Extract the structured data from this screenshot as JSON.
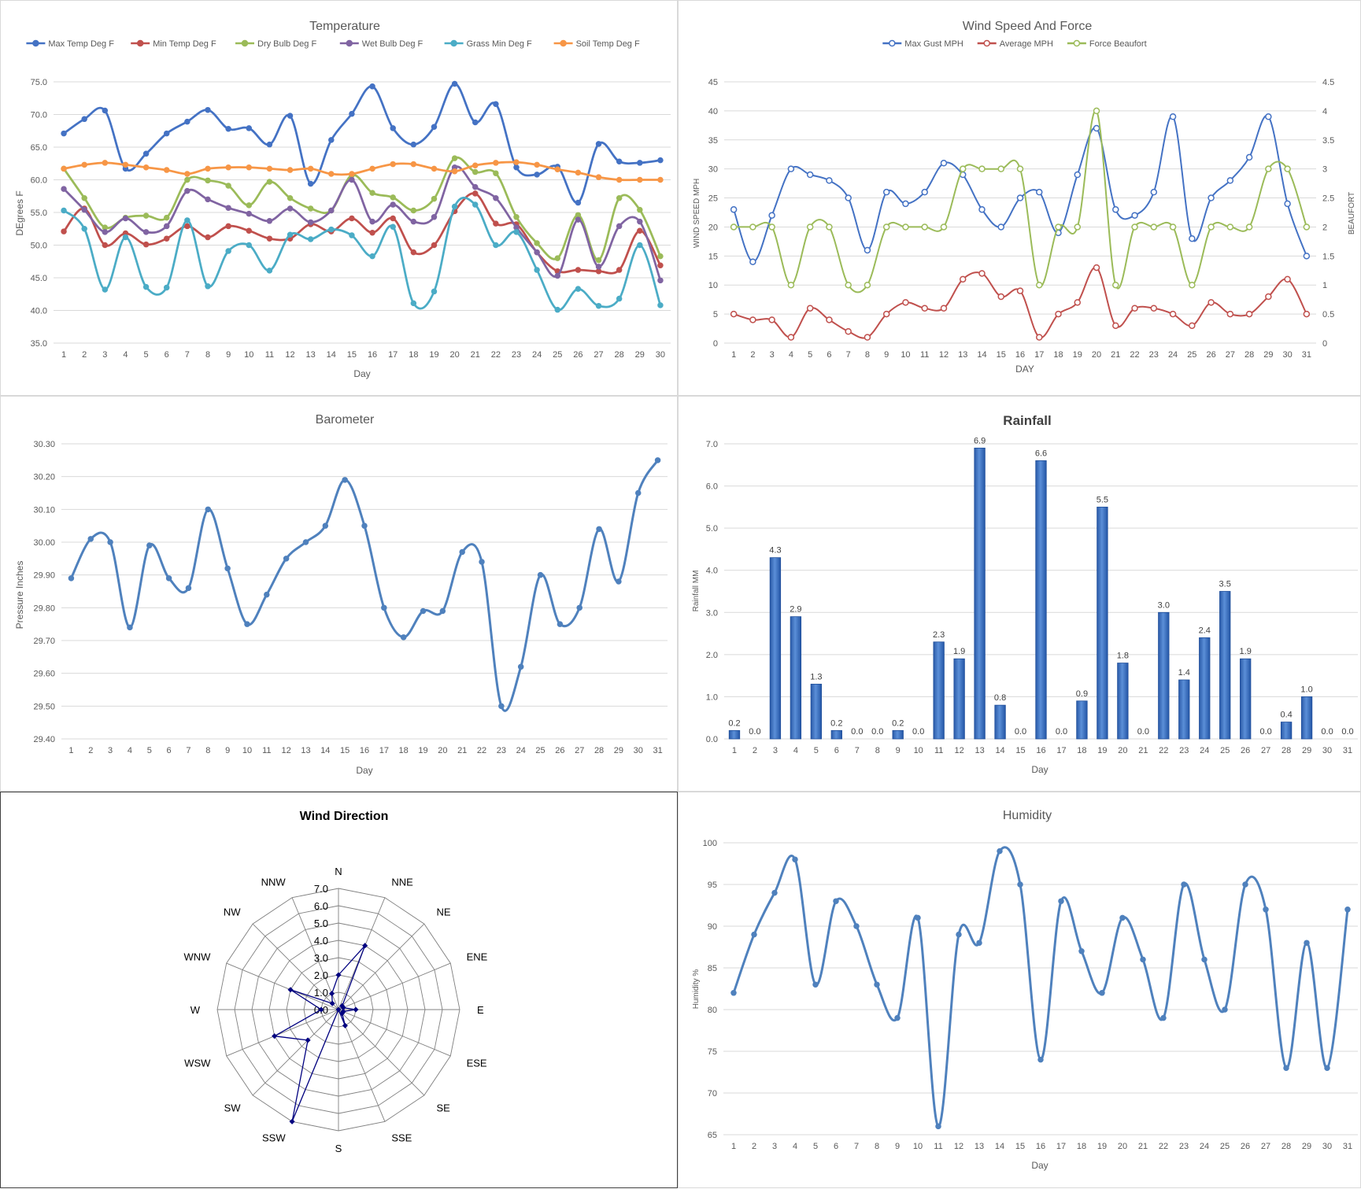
{
  "colors": {
    "max_temp": "#4472C4",
    "min_temp": "#C0504D",
    "dry_bulb": "#9BBB59",
    "wet_bulb": "#8064A2",
    "grass_min": "#4BACC6",
    "soil_temp": "#F79646",
    "barometer": "#4F81BD",
    "rain_bar": "#3E70C0",
    "radar": "#000080",
    "grid": "#d9d9d9",
    "axis_text": "#595959"
  },
  "chart_data": [
    {
      "id": "temperature",
      "type": "line",
      "title": "Temperature",
      "xlabel": "Day",
      "ylabel": "DEgrees F",
      "ylim": [
        35,
        75
      ],
      "yticks": [
        "35.0",
        "40.0",
        "45.0",
        "50.0",
        "55.0",
        "60.0",
        "65.0",
        "70.0",
        "75.0"
      ],
      "x": [
        1,
        2,
        3,
        4,
        5,
        6,
        7,
        8,
        9,
        10,
        11,
        12,
        13,
        14,
        15,
        16,
        17,
        18,
        19,
        20,
        21,
        22,
        23,
        24,
        25,
        26,
        27,
        28,
        29,
        30
      ],
      "grid": true,
      "legend": "top",
      "series": [
        {
          "name": "Max Temp Deg F",
          "color": "#4472C4",
          "values": [
            67.1,
            69.3,
            70.6,
            61.7,
            64.0,
            67.1,
            68.9,
            70.7,
            67.8,
            67.9,
            65.4,
            69.8,
            59.4,
            66.1,
            70.1,
            74.3,
            67.9,
            65.4,
            68.1,
            74.7,
            68.8,
            71.6,
            61.9,
            60.8,
            62.0,
            56.5,
            65.5,
            62.8,
            62.6,
            63.0
          ]
        },
        {
          "name": "Min Temp Deg F",
          "color": "#C0504D",
          "values": [
            52.1,
            55.6,
            50.0,
            51.8,
            50.1,
            51.0,
            52.9,
            51.2,
            52.9,
            52.2,
            51.0,
            51.0,
            53.2,
            52.1,
            54.1,
            51.9,
            54.1,
            48.9,
            50.0,
            55.2,
            57.9,
            53.3,
            53.2,
            48.9,
            46.0,
            46.2,
            46.0,
            46.2,
            52.2,
            46.9
          ]
        },
        {
          "name": "Dry Bulb Deg F",
          "color": "#9BBB59",
          "values": [
            61.7,
            57.2,
            52.7,
            54.2,
            54.5,
            54.2,
            60.0,
            59.9,
            59.1,
            56.1,
            59.7,
            57.2,
            55.6,
            55.3,
            60.7,
            58.0,
            57.3,
            55.3,
            57.1,
            63.3,
            61.2,
            61.0,
            54.3,
            50.3,
            48.0,
            54.6,
            47.7,
            57.2,
            55.4,
            48.3
          ]
        },
        {
          "name": "Wet Bulb Deg F",
          "color": "#8064A2",
          "values": [
            58.6,
            55.4,
            52.0,
            54.1,
            52.0,
            52.9,
            58.3,
            57.0,
            55.7,
            54.8,
            53.7,
            55.6,
            53.5,
            55.3,
            60.0,
            53.6,
            56.2,
            53.6,
            54.3,
            61.9,
            58.9,
            57.2,
            52.7,
            48.9,
            45.3,
            53.9,
            46.7,
            52.9,
            53.6,
            44.6
          ]
        },
        {
          "name": "Grass Min Deg F",
          "color": "#4BACC6",
          "values": [
            55.3,
            52.5,
            43.2,
            51.2,
            43.6,
            43.5,
            53.8,
            43.7,
            49.1,
            50.0,
            46.1,
            51.6,
            50.9,
            52.4,
            51.5,
            48.3,
            52.8,
            41.1,
            42.9,
            55.9,
            56.2,
            50.0,
            52.0,
            46.2,
            40.1,
            43.3,
            40.7,
            41.8,
            50.0,
            40.8
          ]
        },
        {
          "name": "Soil Temp Deg F",
          "color": "#F79646",
          "values": [
            61.7,
            62.3,
            62.6,
            62.3,
            61.9,
            61.5,
            60.9,
            61.7,
            61.9,
            61.9,
            61.7,
            61.5,
            61.7,
            60.9,
            60.9,
            61.7,
            62.4,
            62.4,
            61.7,
            61.3,
            62.2,
            62.6,
            62.7,
            62.3,
            61.6,
            61.1,
            60.4,
            60.0,
            60.0,
            60.0
          ]
        }
      ]
    },
    {
      "id": "wind",
      "type": "line",
      "title": "Wind Speed And Force",
      "xlabel": "DAY",
      "ylabel": "WIND SPEED MPH",
      "y2label": "BEAUFORT",
      "ylim": [
        0,
        45
      ],
      "y2lim": [
        0,
        4.5
      ],
      "yticks": [
        "0",
        "5",
        "10",
        "15",
        "20",
        "25",
        "30",
        "35",
        "40",
        "45"
      ],
      "y2ticks": [
        "0",
        "0.5",
        "1",
        "1.5",
        "2",
        "2.5",
        "3",
        "3.5",
        "4",
        "4.5"
      ],
      "x": [
        1,
        2,
        3,
        4,
        5,
        6,
        7,
        8,
        9,
        10,
        11,
        12,
        13,
        14,
        15,
        16,
        17,
        18,
        19,
        20,
        21,
        22,
        23,
        24,
        25,
        26,
        27,
        28,
        29,
        30,
        31
      ],
      "legend": "top",
      "series": [
        {
          "name": "Max Gust MPH",
          "color": "#4472C4",
          "axis": "left",
          "values": [
            23,
            14,
            22,
            30,
            29,
            28,
            25,
            16,
            26,
            24,
            26,
            31,
            29,
            23,
            20,
            25,
            26,
            19,
            29,
            37,
            23,
            22,
            26,
            39,
            18,
            25,
            28,
            32,
            39,
            24,
            15
          ]
        },
        {
          "name": "Average MPH",
          "color": "#C0504D",
          "axis": "left",
          "values": [
            5,
            4,
            4,
            1,
            6,
            4,
            2,
            1,
            5,
            7,
            6,
            6,
            11,
            12,
            8,
            9,
            1,
            5,
            7,
            13,
            3,
            6,
            6,
            5,
            3,
            7,
            5,
            5,
            8,
            11,
            5
          ]
        },
        {
          "name": "Force Beaufort",
          "color": "#9BBB59",
          "axis": "right",
          "values": [
            2,
            2,
            2,
            1,
            2,
            2,
            1,
            1,
            2,
            2,
            2,
            2,
            3,
            3,
            3,
            3,
            1,
            2,
            2,
            4,
            1,
            2,
            2,
            2,
            1,
            2,
            2,
            2,
            3,
            3,
            2
          ]
        }
      ]
    },
    {
      "id": "barometer",
      "type": "line",
      "title": "Barometer",
      "xlabel": "Day",
      "ylabel": "Pressure Inches",
      "ylim": [
        29.4,
        30.3
      ],
      "yticks": [
        "29.40",
        "29.50",
        "29.60",
        "29.70",
        "29.80",
        "29.90",
        "30.00",
        "30.10",
        "30.20",
        "30.30"
      ],
      "x": [
        1,
        2,
        3,
        4,
        5,
        6,
        7,
        8,
        9,
        10,
        11,
        12,
        13,
        14,
        15,
        16,
        17,
        18,
        19,
        20,
        21,
        22,
        23,
        24,
        25,
        26,
        27,
        28,
        29,
        30,
        31
      ],
      "series": [
        {
          "name": "Barometer",
          "color": "#4F81BD",
          "values": [
            29.89,
            30.01,
            30.0,
            29.74,
            29.99,
            29.89,
            29.86,
            30.1,
            29.92,
            29.75,
            29.84,
            29.95,
            30.0,
            30.05,
            30.19,
            30.05,
            29.8,
            29.71,
            29.79,
            29.79,
            29.97,
            29.94,
            29.5,
            29.62,
            29.9,
            29.75,
            29.8,
            30.04,
            29.88,
            30.15,
            30.25
          ]
        }
      ]
    },
    {
      "id": "rainfall",
      "type": "bar",
      "title": "Rainfall",
      "xlabel": "Day",
      "ylabel": "Rainfall MM",
      "ylim": [
        0,
        7
      ],
      "yticks": [
        "0.0",
        "1.0",
        "2.0",
        "3.0",
        "4.0",
        "5.0",
        "6.0",
        "7.0"
      ],
      "categories": [
        "1",
        "2",
        "3",
        "4",
        "5",
        "6",
        "7",
        "8",
        "9",
        "10",
        "11",
        "12",
        "13",
        "14",
        "15",
        "16",
        "17",
        "18",
        "19",
        "20",
        "21",
        "22",
        "23",
        "24",
        "25",
        "26",
        "27",
        "28",
        "29",
        "30",
        "31"
      ],
      "values": [
        0.2,
        0.0,
        4.3,
        2.9,
        1.3,
        0.2,
        0.0,
        0.0,
        0.2,
        0.0,
        2.3,
        1.9,
        6.9,
        0.8,
        0.0,
        6.6,
        0.0,
        0.9,
        5.5,
        1.8,
        0.0,
        3.0,
        1.4,
        2.4,
        3.5,
        1.9,
        0.0,
        0.4,
        1.0,
        0.0,
        0.0
      ],
      "labels": [
        "0.2",
        "0.0",
        "4.3",
        "2.9",
        "1.3",
        "0.2",
        "0.0",
        "0.0",
        "0.2",
        "0.0",
        "2.3",
        "1.9",
        "6.9",
        "0.8",
        "0.0",
        "6.6",
        "0.0",
        "0.9",
        "5.5",
        "1.8",
        "0.0",
        "3.0",
        "1.4",
        "2.4",
        "3.5",
        "1.9",
        "0.0",
        "0.4",
        "1.0",
        "0.0",
        "0.0"
      ]
    },
    {
      "id": "wind_direction",
      "type": "radar",
      "title": "Wind Direction",
      "rlim": [
        0,
        7
      ],
      "rticks": [
        "0.0",
        "1.0",
        "2.0",
        "3.0",
        "4.0",
        "5.0",
        "6.0",
        "7.0"
      ],
      "categories": [
        "N",
        "NNE",
        "NE",
        "ENE",
        "E",
        "ESE",
        "SE",
        "SSE",
        "S",
        "SSW",
        "SW",
        "WSW",
        "W",
        "WNW",
        "NW",
        "NNW"
      ],
      "values": [
        2.0,
        4.0,
        0.3,
        0.3,
        1.0,
        0.3,
        0.3,
        1.0,
        0.0,
        7.0,
        2.5,
        4.0,
        1.0,
        3.0,
        0.5,
        1.0
      ]
    },
    {
      "id": "humidity",
      "type": "line",
      "title": "Humidity",
      "xlabel": "Day",
      "ylabel": "Humidity %",
      "ylim": [
        65,
        100
      ],
      "yticks": [
        "65",
        "70",
        "75",
        "80",
        "85",
        "90",
        "95",
        "100"
      ],
      "x": [
        1,
        2,
        3,
        4,
        5,
        6,
        7,
        8,
        9,
        10,
        11,
        12,
        13,
        14,
        15,
        16,
        17,
        18,
        19,
        20,
        21,
        22,
        23,
        24,
        25,
        26,
        27,
        28,
        29,
        30,
        31
      ],
      "series": [
        {
          "name": "Humidity",
          "color": "#4F81BD",
          "values": [
            82,
            89,
            94,
            98,
            83,
            93,
            90,
            83,
            79,
            91,
            66,
            89,
            88,
            99,
            95,
            74,
            93,
            87,
            82,
            91,
            86,
            79,
            95,
            86,
            80,
            95,
            92,
            73,
            88,
            73,
            92
          ]
        }
      ]
    }
  ]
}
